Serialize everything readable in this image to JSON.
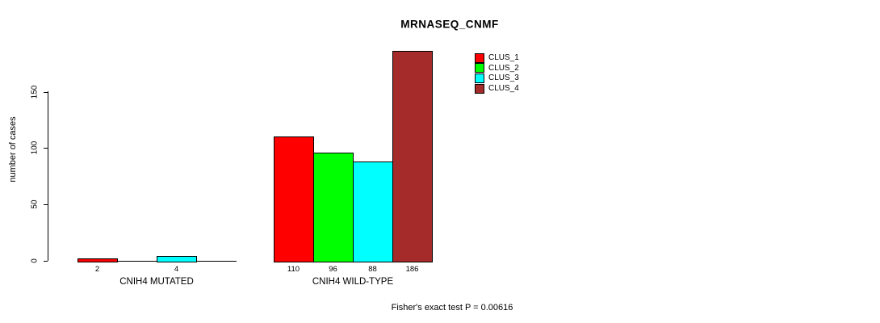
{
  "chart_data": {
    "type": "bar",
    "title": "MRNASEQ_CNMF",
    "ylabel": "number of cases",
    "xlabel": "",
    "yticks": [
      0,
      50,
      100,
      150
    ],
    "ylim": [
      0,
      190
    ],
    "grid": false,
    "legend_position": "top-right",
    "categories": [
      "CNIH4 MUTATED",
      "CNIH4 WILD-TYPE"
    ],
    "series": [
      {
        "name": "CLUS_1",
        "color": "#FF0000",
        "values": [
          2,
          110
        ]
      },
      {
        "name": "CLUS_2",
        "color": "#00FF00",
        "values": [
          0,
          96
        ]
      },
      {
        "name": "CLUS_3",
        "color": "#00FFFF",
        "values": [
          4,
          88
        ]
      },
      {
        "name": "CLUS_4",
        "color": "#A52A2A",
        "values": [
          0,
          186
        ]
      }
    ],
    "bar_labels": [
      [
        "2",
        "",
        "4",
        ""
      ],
      [
        "110",
        "96",
        "88",
        "186"
      ]
    ],
    "annotation": "Fisher's exact test P = 0.00616"
  }
}
